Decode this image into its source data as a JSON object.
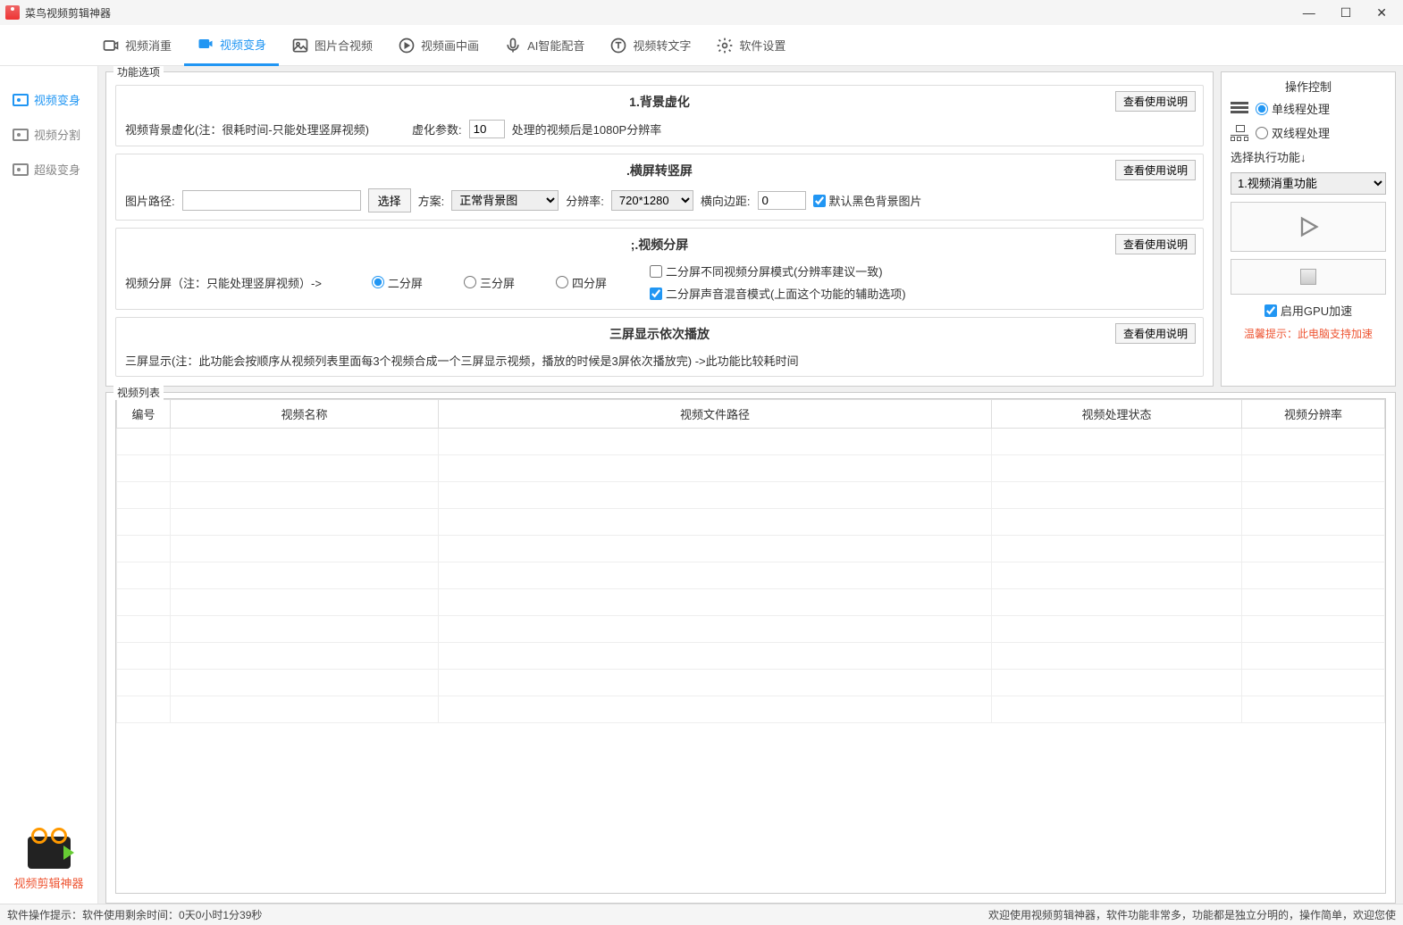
{
  "titlebar": {
    "title": "菜鸟视频剪辑神器"
  },
  "topnav": {
    "tabs": [
      {
        "label": "视频消重"
      },
      {
        "label": "视频变身"
      },
      {
        "label": "图片合视频"
      },
      {
        "label": "视频画中画"
      },
      {
        "label": "AI智能配音"
      },
      {
        "label": "视频转文字"
      },
      {
        "label": "软件设置"
      }
    ],
    "active_index": 1
  },
  "sidebar": {
    "items": [
      {
        "label": "视频变身"
      },
      {
        "label": "视频分割"
      },
      {
        "label": "超级变身"
      }
    ],
    "active_index": 0,
    "logo_text": "视频剪辑神器"
  },
  "options": {
    "group_title": "功能选项",
    "help_button": "查看使用说明",
    "sec1": {
      "title": "1.背景虚化",
      "desc": "视频背景虚化(注：很耗时间-只能处理竖屏视频)",
      "param_label": "虚化参数:",
      "param_value": "10",
      "suffix": "处理的视频后是1080P分辨率"
    },
    "sec2": {
      "title": ".横屏转竖屏",
      "path_label": "图片路径:",
      "path_value": "",
      "choose_btn": "选择",
      "plan_label": "方案:",
      "plan_value": "正常背景图",
      "res_label": "分辨率:",
      "res_value": "720*1280",
      "margin_label": "横向边距:",
      "margin_value": "0",
      "default_black": "默认黑色背景图片"
    },
    "sec3": {
      "title": ";.视频分屏",
      "desc": "视频分屏（注：只能处理竖屏视频）->",
      "r1": "二分屏",
      "r2": "三分屏",
      "r3": "四分屏",
      "c1": "二分屏不同视频分屏模式(分辨率建议一致)",
      "c2": "二分屏声音混音模式(上面这个功能的辅助选项)"
    },
    "sec4": {
      "title": "三屏显示依次播放",
      "desc": "三屏显示(注：此功能会按顺序从视频列表里面每3个视频合成一个三屏显示视频，播放的时候是3屏依次播放完) ->此功能比较耗时间"
    }
  },
  "control": {
    "title": "操作控制",
    "single_thread": "单线程处理",
    "dual_thread": "双线程处理",
    "select_label": "选择执行功能↓",
    "select_value": "1.视频消重功能",
    "gpu_label": "启用GPU加速",
    "tip": "温馨提示：此电脑支持加速"
  },
  "videolist": {
    "title": "视频列表",
    "columns": [
      "编号",
      "视频名称",
      "视频文件路径",
      "视频处理状态",
      "视频分辨率"
    ],
    "col_widths": [
      "60px",
      "300px",
      "auto",
      "280px",
      "160px"
    ],
    "empty_rows": 11
  },
  "statusbar": {
    "left_label": "软件操作提示：",
    "left_text": "软件使用剩余时间：0天0小时1分39秒",
    "right_text": "欢迎使用视频剪辑神器，软件功能非常多，功能都是独立分明的，操作简单，欢迎您使"
  }
}
